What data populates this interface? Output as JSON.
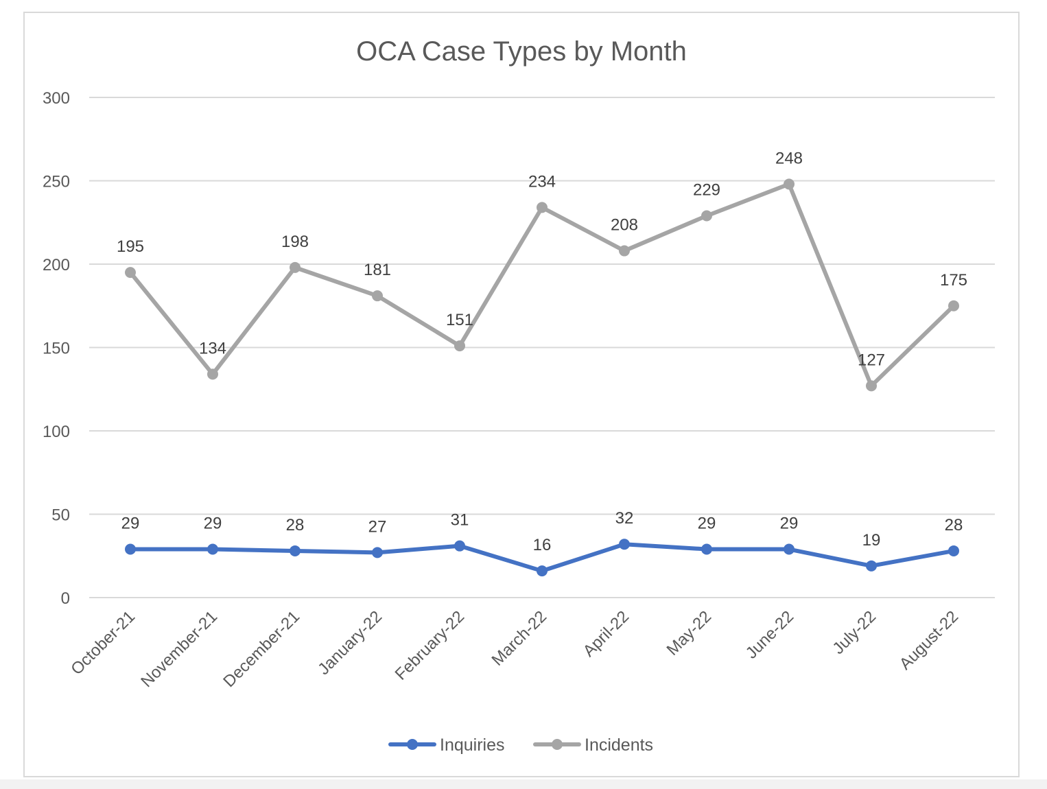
{
  "chart_data": {
    "type": "line",
    "title": "OCA Case Types by Month",
    "xlabel": "",
    "ylabel": "",
    "categories": [
      "October-21",
      "November-21",
      "December-21",
      "January-22",
      "February-22",
      "March-22",
      "April-22",
      "May-22",
      "June-22",
      "July-22",
      "August-22"
    ],
    "ylim": [
      0,
      300
    ],
    "yticks": [
      0,
      50,
      100,
      150,
      200,
      250,
      300
    ],
    "grid": true,
    "legend": "bottom",
    "series": [
      {
        "name": "Inquiries",
        "color": "#4472c4",
        "values": [
          29,
          29,
          28,
          27,
          31,
          16,
          32,
          29,
          29,
          19,
          28
        ]
      },
      {
        "name": "Incidents",
        "color": "#a5a5a5",
        "values": [
          195,
          134,
          198,
          181,
          151,
          234,
          208,
          229,
          248,
          127,
          175
        ]
      }
    ]
  }
}
